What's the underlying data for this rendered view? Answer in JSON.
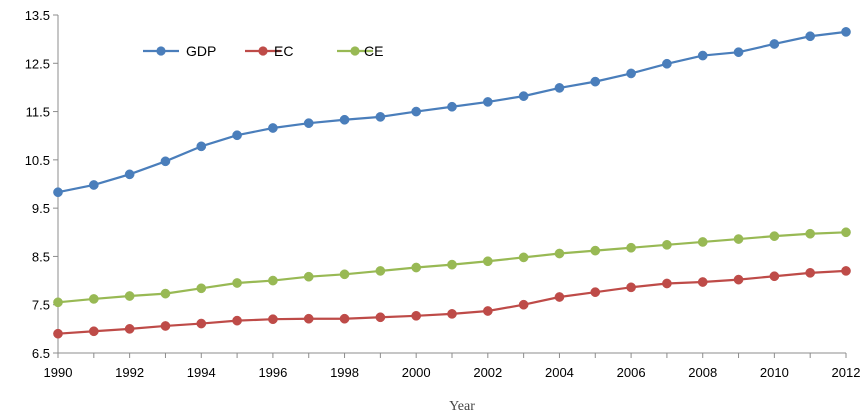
{
  "chart_data": {
    "type": "line",
    "xlabel": "Year",
    "ylabel": "",
    "ylim": [
      6.5,
      13.5
    ],
    "yticks": [
      "6.5",
      "7.5",
      "8.5",
      "9.5",
      "10.5",
      "11.5",
      "12.5",
      "13.5"
    ],
    "xticks": [
      "1990",
      "1992",
      "1994",
      "1996",
      "1998",
      "2000",
      "2002",
      "2004",
      "2006",
      "2008",
      "2010",
      "2012"
    ],
    "x": [
      1990,
      1991,
      1992,
      1993,
      1994,
      1995,
      1996,
      1997,
      1998,
      1999,
      2000,
      2001,
      2002,
      2003,
      2004,
      2005,
      2006,
      2007,
      2008,
      2009,
      2010,
      2011,
      2012
    ],
    "legend_position": "top-left",
    "grid": false,
    "series": [
      {
        "name": "GDP",
        "color": "#4a7ebb",
        "values": [
          9.83,
          9.98,
          10.2,
          10.47,
          10.78,
          11.01,
          11.16,
          11.26,
          11.33,
          11.39,
          11.5,
          11.6,
          11.7,
          11.82,
          11.99,
          12.12,
          12.29,
          12.49,
          12.66,
          12.73,
          12.9,
          13.06,
          13.15
        ]
      },
      {
        "name": "EC",
        "color": "#be4b48",
        "values": [
          6.9,
          6.95,
          7.0,
          7.06,
          7.11,
          7.17,
          7.2,
          7.21,
          7.21,
          7.24,
          7.27,
          7.31,
          7.37,
          7.5,
          7.66,
          7.76,
          7.86,
          7.94,
          7.97,
          8.02,
          8.09,
          8.16,
          8.2
        ]
      },
      {
        "name": "CE",
        "color": "#98b954",
        "values": [
          7.55,
          7.62,
          7.68,
          7.73,
          7.84,
          7.95,
          8.0,
          8.08,
          8.13,
          8.2,
          8.27,
          8.33,
          8.4,
          8.48,
          8.56,
          8.62,
          8.68,
          8.74,
          8.8,
          8.86,
          8.92,
          8.97,
          9.0
        ]
      }
    ]
  }
}
